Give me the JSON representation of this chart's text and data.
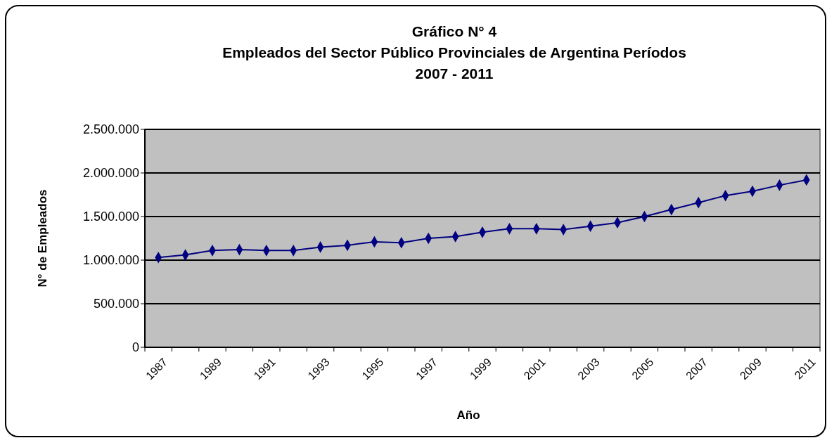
{
  "chart_data": {
    "type": "line",
    "title": "Gráfico N° 4\nEmpleados del Sector Público Provinciales de Argentina Períodos\n2007 - 2011",
    "xlabel": "Año",
    "ylabel": "N° de Empleados",
    "categories": [
      "1987",
      null,
      "1989",
      null,
      "1991",
      null,
      "1993",
      null,
      "1995",
      null,
      "1997",
      null,
      "1999",
      null,
      "2001",
      null,
      "2003",
      null,
      "2005",
      null,
      "2007",
      null,
      "2009",
      null,
      "2011"
    ],
    "series": [
      {
        "color": "#000080",
        "values": [
          1030000,
          1060000,
          1110000,
          1120000,
          1110000,
          1110000,
          1150000,
          1170000,
          1210000,
          1200000,
          1250000,
          1270000,
          1320000,
          1360000,
          1360000,
          1350000,
          1390000,
          1430000,
          1500000,
          1580000,
          1660000,
          1740000,
          1790000,
          1860000,
          1920000
        ]
      }
    ],
    "ylim": [
      0,
      2500000
    ],
    "yticks": [
      0,
      {
        "value": 500000,
        "label": "500.000"
      },
      {
        "value": 1000000,
        "label": "1.000.000"
      },
      {
        "value": 1500000,
        "label": "1.500.000"
      },
      {
        "value": 2000000,
        "label": "2.000.000"
      },
      {
        "value": 2500000,
        "label": "2.500.000"
      }
    ],
    "grid": "y",
    "marker": "diamond",
    "line_style": "solid"
  }
}
